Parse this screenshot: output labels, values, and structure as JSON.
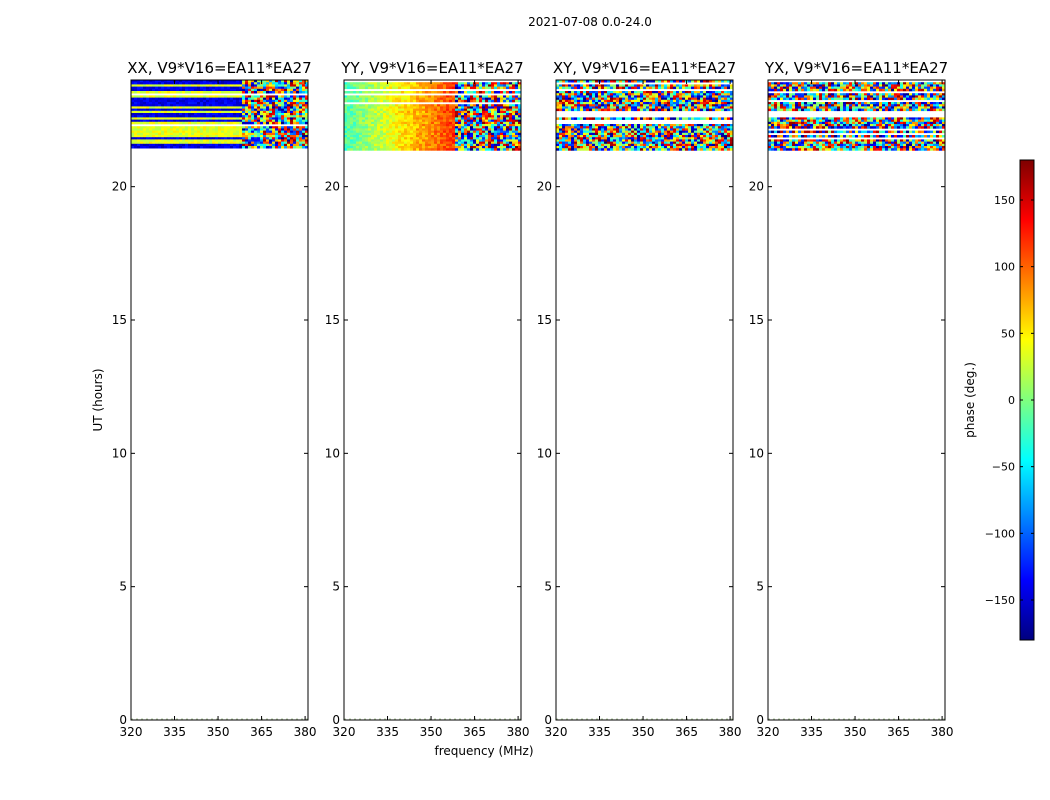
{
  "figure": {
    "suptitle": "2021-07-08 0.0-24.0",
    "shared_xlabel": "frequency (MHz)",
    "shared_ylabel": "UT (hours)"
  },
  "colorbar": {
    "label": "phase (deg.)",
    "range": [
      -180,
      180
    ],
    "ticks": [
      150,
      100,
      50,
      0,
      -50,
      -100,
      -150
    ],
    "tick_labels": [
      "150",
      "100",
      "50",
      "0",
      "−50",
      "−100",
      "−150"
    ],
    "colormap": "jet",
    "colormap_stops": [
      "#00007f",
      "#0000ff",
      "#007fff",
      "#00ffff",
      "#7fff7f",
      "#ffff00",
      "#ff7f00",
      "#ff0000",
      "#7f0000"
    ]
  },
  "chart_data": [
    {
      "type": "heatmap",
      "title": "XX, V9*V16=EA11*EA27",
      "xlim": [
        320,
        381
      ],
      "ylim": [
        0,
        24
      ],
      "xticks": [
        320,
        335,
        350,
        365,
        380
      ],
      "yticks": [
        0,
        5,
        10,
        15,
        20
      ],
      "data_extent_hours": [
        21.4,
        24.0
      ],
      "color_value": "phase (deg.)",
      "pattern": "mostly flat phase with fringing above ~361 MHz"
    },
    {
      "type": "heatmap",
      "title": "YY, V9*V16=EA11*EA27",
      "xlim": [
        320,
        381
      ],
      "ylim": [
        0,
        24
      ],
      "xticks": [
        320,
        335,
        350,
        365,
        380
      ],
      "yticks": [
        0,
        5,
        10,
        15,
        20
      ],
      "data_extent_hours": [
        21.4,
        24.0
      ],
      "color_value": "phase (deg.)",
      "pattern": "smooth phase gradient with fringing above ~361 MHz"
    },
    {
      "type": "heatmap",
      "title": "XY, V9*V16=EA11*EA27",
      "xlim": [
        320,
        381
      ],
      "ylim": [
        0,
        24
      ],
      "xticks": [
        320,
        335,
        350,
        365,
        380
      ],
      "yticks": [
        0,
        5,
        10,
        15,
        20
      ],
      "data_extent_hours": [
        21.4,
        24.0
      ],
      "color_value": "phase (deg.)",
      "pattern": "noisy phase across full band"
    },
    {
      "type": "heatmap",
      "title": "YX, V9*V16=EA11*EA27",
      "xlim": [
        320,
        381
      ],
      "ylim": [
        0,
        24
      ],
      "xticks": [
        320,
        335,
        350,
        365,
        380
      ],
      "yticks": [
        0,
        5,
        10,
        15,
        20
      ],
      "data_extent_hours": [
        21.4,
        24.0
      ],
      "color_value": "phase (deg.)",
      "pattern": "noisy phase across full band"
    }
  ]
}
